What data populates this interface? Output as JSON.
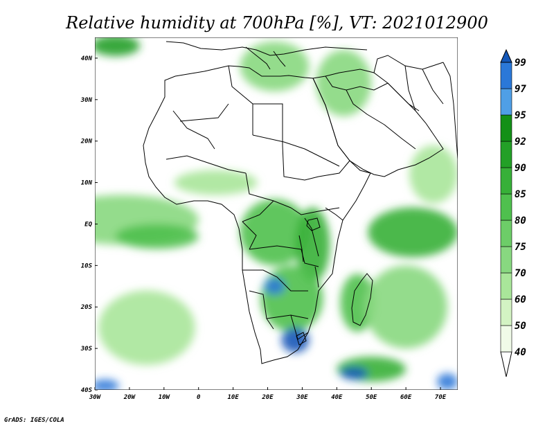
{
  "title": "Relative humidity at 700hPa [%], VT: 2021012900",
  "credit": "GrADS: IGES/COLA",
  "map": {
    "lon_range": [
      -30,
      75
    ],
    "lat_range": [
      -40,
      45
    ],
    "lon_ticks": [
      {
        "value": -30,
        "label": "30W"
      },
      {
        "value": -20,
        "label": "20W"
      },
      {
        "value": -10,
        "label": "10W"
      },
      {
        "value": 0,
        "label": "0"
      },
      {
        "value": 10,
        "label": "10E"
      },
      {
        "value": 20,
        "label": "20E"
      },
      {
        "value": 30,
        "label": "30E"
      },
      {
        "value": 40,
        "label": "40E"
      },
      {
        "value": 50,
        "label": "50E"
      },
      {
        "value": 60,
        "label": "60E"
      },
      {
        "value": 70,
        "label": "70E"
      }
    ],
    "lat_ticks": [
      {
        "value": 40,
        "label": "40N"
      },
      {
        "value": 30,
        "label": "30N"
      },
      {
        "value": 20,
        "label": "20N"
      },
      {
        "value": 10,
        "label": "10N"
      },
      {
        "value": 0,
        "label": "EQ"
      },
      {
        "value": -10,
        "label": "10S"
      },
      {
        "value": -20,
        "label": "20S"
      },
      {
        "value": -30,
        "label": "30S"
      },
      {
        "value": -40,
        "label": "40S"
      }
    ]
  },
  "colorbar": {
    "levels": [
      "40",
      "50",
      "60",
      "70",
      "75",
      "80",
      "85",
      "90",
      "92",
      "95",
      "97",
      "99"
    ],
    "colors": [
      "#f0fbe8",
      "#d3f3c3",
      "#a9e69a",
      "#88d880",
      "#6dcd68",
      "#4fc04e",
      "#37b038",
      "#23a027",
      "#139017",
      "#4f9fe6",
      "#2b78d8",
      "#1558b8"
    ]
  },
  "humidity_regions": [
    {
      "name": "eq-atlantic-band",
      "lon": -22,
      "lat": 1,
      "rx_deg": 22,
      "ry_deg": 6,
      "level": 3
    },
    {
      "name": "eq-atlantic-core",
      "lon": -12,
      "lat": -3,
      "rx_deg": 12,
      "ry_deg": 3,
      "level": 5
    },
    {
      "name": "nw-atlantic",
      "lon": -24,
      "lat": 43,
      "rx_deg": 7,
      "ry_deg": 2.5,
      "level": 7
    },
    {
      "name": "mediterranean",
      "lon": 22,
      "lat": 38,
      "rx_deg": 10,
      "ry_deg": 6,
      "level": 3
    },
    {
      "name": "middle-east",
      "lon": 42,
      "lat": 34,
      "rx_deg": 8,
      "ry_deg": 8,
      "level": 3
    },
    {
      "name": "congo-basin",
      "lon": 22,
      "lat": -2,
      "rx_deg": 10,
      "ry_deg": 8,
      "level": 5
    },
    {
      "name": "east-africa",
      "lon": 33,
      "lat": -5,
      "rx_deg": 5,
      "ry_deg": 9,
      "level": 6
    },
    {
      "name": "southern-africa",
      "lon": 27,
      "lat": -18,
      "rx_deg": 9,
      "ry_deg": 8,
      "level": 5
    },
    {
      "name": "south-africa-high",
      "lon": 28,
      "lat": -28,
      "rx_deg": 4,
      "ry_deg": 3,
      "level": 11
    },
    {
      "name": "zambia-high",
      "lon": 22,
      "lat": -15,
      "rx_deg": 3,
      "ry_deg": 2,
      "level": 10
    },
    {
      "name": "madagascar",
      "lon": 46,
      "lat": -19,
      "rx_deg": 5,
      "ry_deg": 7,
      "level": 5
    },
    {
      "name": "w-indian-ocean",
      "lon": 62,
      "lat": -2,
      "rx_deg": 13,
      "ry_deg": 6,
      "level": 6
    },
    {
      "name": "s-indian-ocean",
      "lon": 60,
      "lat": -20,
      "rx_deg": 12,
      "ry_deg": 10,
      "level": 3
    },
    {
      "name": "sw-tail",
      "lon": 50,
      "lat": -35,
      "rx_deg": 10,
      "ry_deg": 3,
      "level": 6
    },
    {
      "name": "sw-tail-high",
      "lon": 45,
      "lat": -36,
      "rx_deg": 4,
      "ry_deg": 1.5,
      "level": 11
    },
    {
      "name": "se-corner",
      "lon": 72,
      "lat": -38,
      "rx_deg": 3,
      "ry_deg": 2,
      "level": 10
    },
    {
      "name": "sw-corner",
      "lon": -27,
      "lat": -39,
      "rx_deg": 4,
      "ry_deg": 1.5,
      "level": 10
    },
    {
      "name": "s-atlantic-plume",
      "lon": -15,
      "lat": -25,
      "rx_deg": 14,
      "ry_deg": 9,
      "level": 2
    },
    {
      "name": "arabian-sea",
      "lon": 68,
      "lat": 12,
      "rx_deg": 7,
      "ry_deg": 7,
      "level": 2
    },
    {
      "name": "sahel",
      "lon": 5,
      "lat": 10,
      "rx_deg": 12,
      "ry_deg": 3,
      "level": 2
    }
  ]
}
